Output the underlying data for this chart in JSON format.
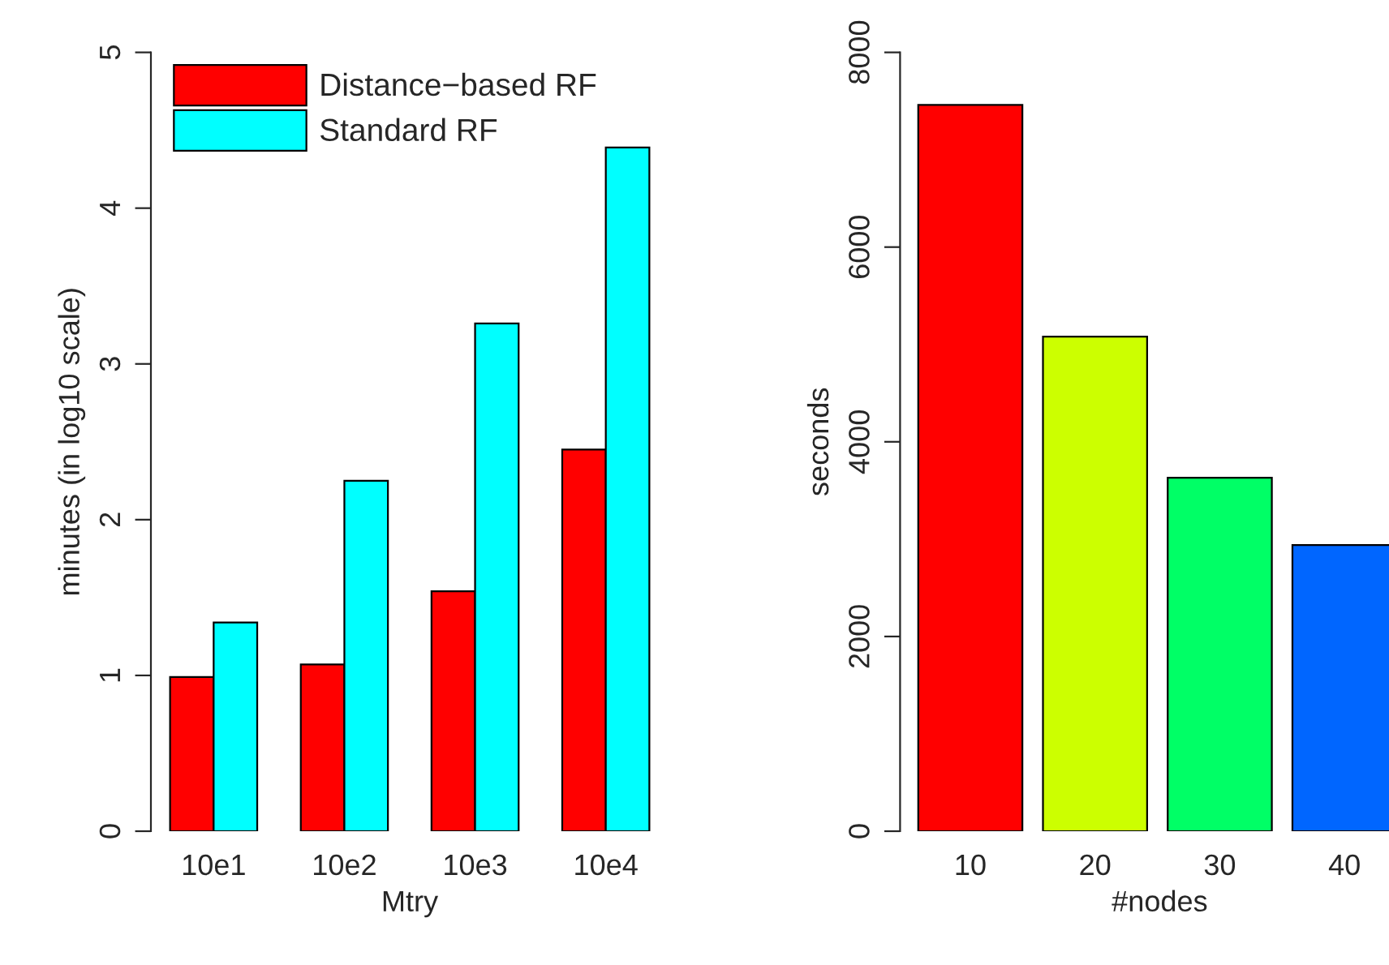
{
  "chart_data": [
    {
      "type": "bar",
      "categories": [
        "10e1",
        "10e2",
        "10e3",
        "10e4"
      ],
      "xlabel": "Mtry",
      "ylabel": "minutes (in log10 scale)",
      "ylim": [
        0,
        5
      ],
      "yticks": [
        0,
        1,
        2,
        3,
        4,
        5
      ],
      "legend": "top left",
      "series": [
        {
          "name": "Distance−based RF",
          "color": "#ff0000",
          "values": [
            0.99,
            1.07,
            1.54,
            2.45
          ]
        },
        {
          "name": "Standard RF",
          "color": "#00ffff",
          "values": [
            1.34,
            2.25,
            3.26,
            4.39
          ]
        }
      ]
    },
    {
      "type": "bar",
      "categories": [
        "10",
        "20",
        "30",
        "40"
      ],
      "xlabel": "#nodes",
      "ylabel": "seconds",
      "ylim": [
        0,
        8000
      ],
      "yticks": [
        0,
        2000,
        4000,
        6000,
        8000
      ],
      "values": [
        7460,
        5080,
        3630,
        2940
      ],
      "colors": [
        "#ff0000",
        "#ccff00",
        "#00ff66",
        "#0066ff"
      ]
    }
  ]
}
